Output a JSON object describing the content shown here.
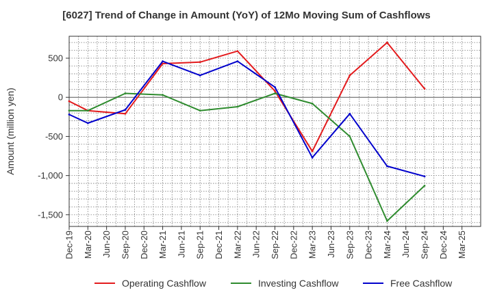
{
  "chart_data": {
    "type": "line",
    "title": "[6027]  Trend of Change in Amount (YoY) of 12Mo Moving Sum of Cashflows",
    "xlabel": "",
    "ylabel": "Amount (million yen)",
    "ylim": [
      -1650,
      780
    ],
    "yticks": [
      500,
      0,
      -500,
      -1000,
      -1500
    ],
    "ytick_labels": [
      "500",
      "0",
      "-500",
      "-1,000",
      "-1,500"
    ],
    "categories": [
      "Dec-19",
      "Mar-20",
      "Jun-20",
      "Sep-20",
      "Dec-20",
      "Mar-21",
      "Jun-21",
      "Sep-21",
      "Dec-21",
      "Mar-22",
      "Jun-22",
      "Sep-22",
      "Dec-22",
      "Mar-23",
      "Jun-23",
      "Sep-23",
      "Dec-23",
      "Mar-24",
      "Jun-24",
      "Sep-24",
      "Dec-24",
      "Mar-25"
    ],
    "tick_labels": [
      "Dec-19",
      "Mar-20",
      "Jun-20",
      "Sep-20",
      "Dec-20",
      "Mar-21",
      "Jun-21",
      "Sep-21",
      "Dec-21",
      "Mar-22",
      "Jun-22",
      "Sep-22",
      "Dec-22",
      "Mar-23",
      "Jun-23",
      "Sep-23",
      "Dec-23",
      "Mar-24",
      "Jun-24",
      "Sep-24",
      "Dec-24",
      "Mar-25"
    ],
    "grid": true,
    "legend_position": "bottom",
    "series": [
      {
        "name": "Operating Cashflow",
        "color": "#e31a1c",
        "values": [
          -50,
          -170,
          null,
          -210,
          null,
          430,
          null,
          450,
          null,
          590,
          null,
          80,
          null,
          -690,
          null,
          280,
          null,
          700,
          null,
          110,
          null,
          null
        ]
      },
      {
        "name": "Investing Cashflow",
        "color": "#2e8b2e",
        "values": [
          -170,
          -170,
          null,
          50,
          null,
          30,
          null,
          -170,
          null,
          -120,
          null,
          50,
          null,
          -80,
          null,
          -500,
          null,
          -1580,
          null,
          -1130,
          null,
          null
        ]
      },
      {
        "name": "Free Cashflow",
        "color": "#0000cc",
        "values": [
          -220,
          -330,
          null,
          -160,
          null,
          460,
          null,
          280,
          null,
          460,
          null,
          130,
          null,
          -770,
          null,
          -210,
          null,
          -880,
          null,
          -1010,
          null,
          null
        ]
      }
    ]
  }
}
